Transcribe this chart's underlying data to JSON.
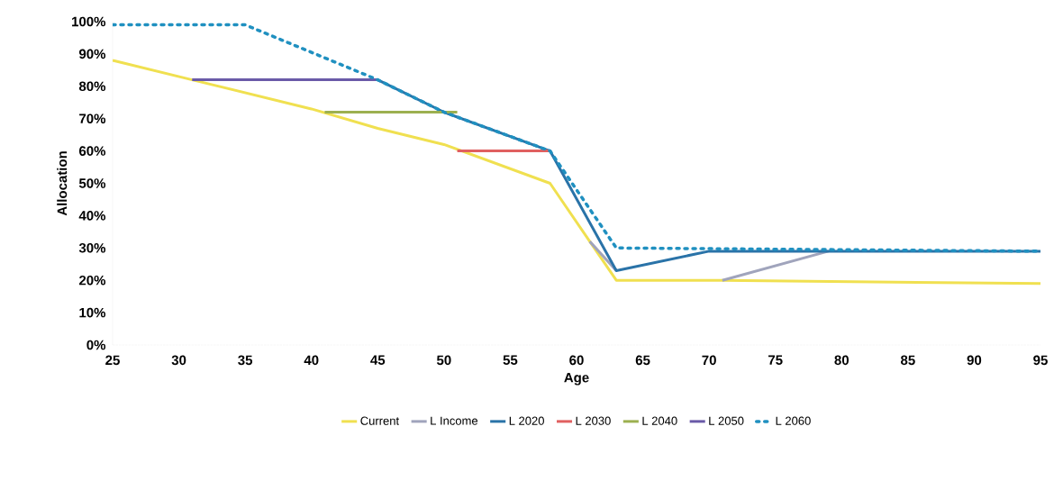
{
  "chart_data": {
    "type": "line",
    "xlabel": "Age",
    "ylabel": "Allocation",
    "xlim": [
      25,
      95
    ],
    "xticks": [
      25,
      30,
      35,
      40,
      45,
      50,
      55,
      60,
      65,
      70,
      75,
      80,
      85,
      90,
      95
    ],
    "ylim": [
      0,
      100
    ],
    "yticks": [
      {
        "value": 0,
        "label": "0%"
      },
      {
        "value": 10,
        "label": "10%"
      },
      {
        "value": 20,
        "label": "20%"
      },
      {
        "value": 30,
        "label": "30%"
      },
      {
        "value": 40,
        "label": "40%"
      },
      {
        "value": 50,
        "label": "50%"
      },
      {
        "value": 60,
        "label": "60%"
      },
      {
        "value": 70,
        "label": "70%"
      },
      {
        "value": 80,
        "label": "80%"
      },
      {
        "value": 90,
        "label": "90%"
      },
      {
        "value": 100,
        "label": "100%"
      }
    ],
    "grid": false,
    "legend": "bottom",
    "marker": "none",
    "series": [
      {
        "name": "Current",
        "color": "#f0e050",
        "x": [
          25,
          31,
          40,
          45,
          50,
          58,
          61,
          63,
          71,
          95
        ],
        "values": [
          88,
          82,
          73,
          67,
          62,
          50,
          32,
          20,
          20,
          19
        ]
      },
      {
        "name": "L Income",
        "color": "#a0a4bc",
        "x": [
          61,
          63,
          67,
          71,
          79
        ],
        "values": [
          32,
          23,
          null,
          20,
          29
        ]
      },
      {
        "name": "L 2020",
        "color": "#2a73a8",
        "x": [
          45,
          50,
          58,
          63,
          70,
          95
        ],
        "values": [
          82,
          72,
          60,
          23,
          29,
          29
        ]
      },
      {
        "name": "L 2030",
        "color": "#e06060",
        "x": [
          51,
          58
        ],
        "values": [
          60,
          60
        ]
      },
      {
        "name": "L 2040",
        "color": "#9cb050",
        "x": [
          41,
          51
        ],
        "values": [
          72,
          72
        ]
      },
      {
        "name": "L 2050",
        "color": "#6a5aa8",
        "x": [
          31,
          45
        ],
        "values": [
          82,
          82
        ]
      },
      {
        "name": "L 2060",
        "color": "#2090c0",
        "line_style": "dotted",
        "x": [
          25,
          35,
          45,
          50,
          58,
          63,
          95
        ],
        "values": [
          99,
          99,
          82,
          72,
          60,
          30,
          29
        ]
      }
    ]
  }
}
